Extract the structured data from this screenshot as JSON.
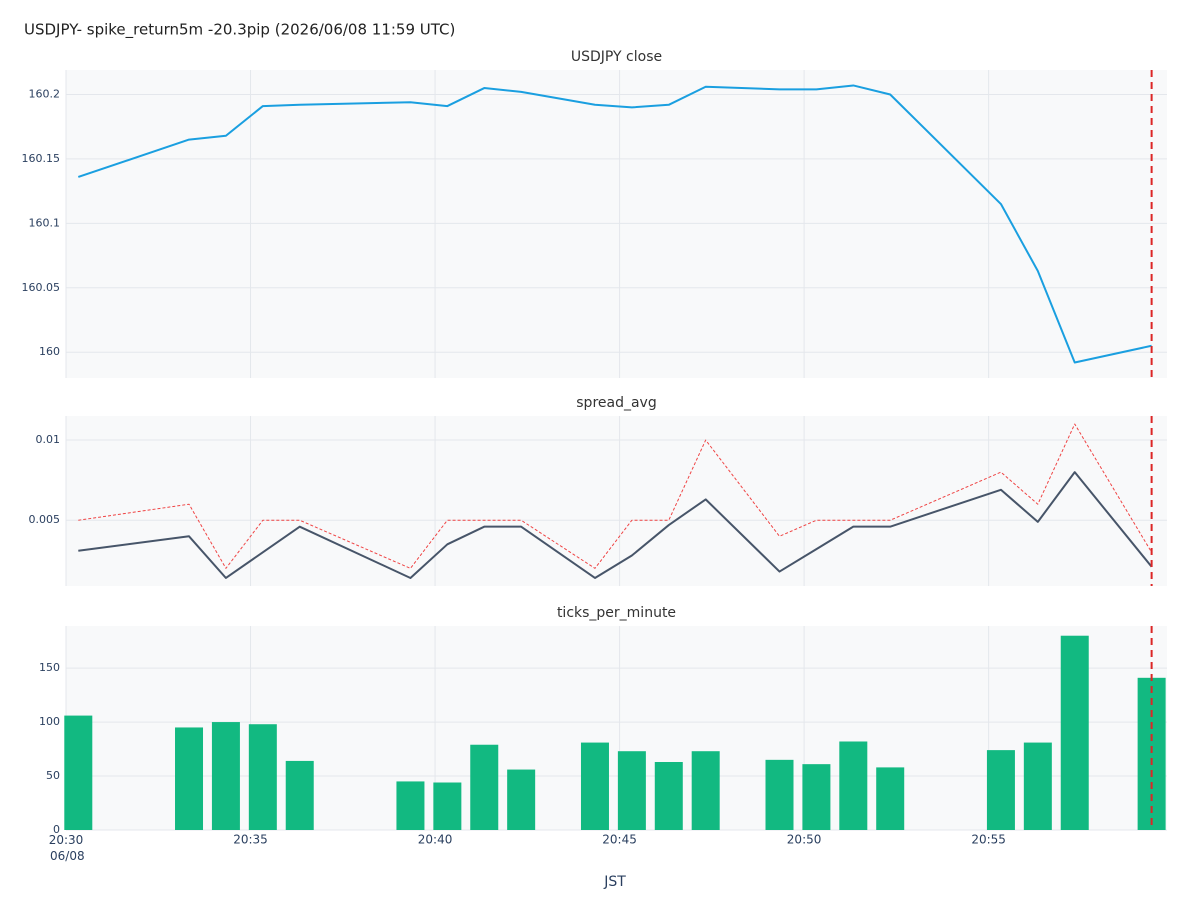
{
  "title": "USDJPY- spike_return5m -20.3pip (2026/06/08 11:59 UTC)",
  "x_axis": {
    "label": "JST",
    "x": [
      "20:30:20",
      "20:33:20",
      "20:34:20",
      "20:35:20",
      "20:36:20",
      "20:39:20",
      "20:40:20",
      "20:41:20",
      "20:42:20",
      "20:44:20",
      "20:45:20",
      "20:46:20",
      "20:47:20",
      "20:49:20",
      "20:50:20",
      "20:51:20",
      "20:52:20",
      "20:55:20",
      "20:56:20",
      "20:57:20",
      "20:59:25"
    ],
    "xlim": [
      "20:30:00",
      "20:59:50"
    ],
    "xticks": [
      {
        "value": "20:30",
        "label": "20:30 06/08"
      },
      "20:35",
      "20:40",
      "20:45",
      "20:50",
      "20:55"
    ],
    "event_x": "20:59:25",
    "event_color": "#dc2626",
    "grid": true
  },
  "chart_data": [
    {
      "type": "line",
      "title": "USDJPY close",
      "series": [
        {
          "color": "#1a9fe0",
          "dash": "solid",
          "values": [
            160.136,
            160.165,
            160.168,
            160.191,
            160.192,
            160.194,
            160.191,
            160.205,
            160.202,
            160.192,
            160.19,
            160.192,
            160.206,
            160.204,
            160.204,
            160.207,
            160.2,
            160.115,
            160.063,
            159.992,
            160.005
          ]
        }
      ],
      "ylim": [
        159.98,
        160.219
      ],
      "yticks": [
        160,
        160.05,
        160.1,
        160.15,
        160.2
      ]
    },
    {
      "type": "line",
      "title": "spread_avg",
      "series": [
        {
          "color": "#ef4444",
          "dash": "dotted",
          "values": [
            0.005,
            0.006,
            0.002,
            0.005,
            0.005,
            0.002,
            0.005,
            0.005,
            0.005,
            0.002,
            0.005,
            0.005,
            0.01,
            0.004,
            0.005,
            0.005,
            0.005,
            0.008,
            0.006,
            0.011,
            0.003
          ]
        },
        {
          "color": "#475569",
          "dash": "solid",
          "values": [
            0.0031,
            0.004,
            0.0014,
            0.003,
            0.0046,
            0.0014,
            0.0035,
            0.0046,
            0.0046,
            0.0014,
            0.0028,
            0.0047,
            0.0063,
            0.0018,
            0.0032,
            0.0046,
            0.0046,
            0.0069,
            0.0049,
            0.008,
            0.0021
          ]
        }
      ],
      "ylim": [
        0.0009,
        0.0115
      ],
      "yticks": [
        0.005,
        0.01
      ]
    },
    {
      "type": "bar",
      "title": "ticks_per_minute",
      "series": [
        {
          "color": "#12b981",
          "values": [
            106,
            95,
            100,
            98,
            64,
            45,
            44,
            79,
            56,
            81,
            73,
            63,
            73,
            65,
            61,
            82,
            58,
            74,
            81,
            180,
            141
          ]
        }
      ],
      "ylim": [
        0,
        189
      ],
      "yticks": [
        0,
        50,
        100,
        150
      ]
    }
  ]
}
